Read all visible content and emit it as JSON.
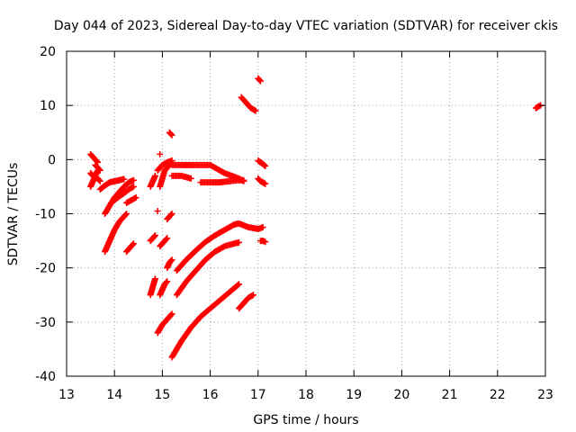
{
  "chart_data": {
    "type": "scatter",
    "title": "Day 044 of 2023, Sidereal Day-to-day VTEC variation (SDTVAR) for receiver ckis",
    "xlabel": "GPS time / hours",
    "ylabel": "SDTVAR / TECUs",
    "xlim": [
      13,
      23
    ],
    "ylim": [
      -40,
      20
    ],
    "xticks": [
      13,
      14,
      15,
      16,
      17,
      18,
      19,
      20,
      21,
      22,
      23
    ],
    "xtick_labels": [
      "13",
      "14",
      "15",
      "16",
      "17",
      "18",
      "19",
      "20",
      "21",
      "22",
      "23"
    ],
    "yticks": [
      20,
      10,
      0,
      -10,
      -20,
      -30,
      -40
    ],
    "ytick_labels": [
      "20",
      "10",
      "0",
      "-10",
      "-20",
      "-30",
      "-40"
    ],
    "grid": true,
    "marker": "+",
    "series_color": "#ff0000",
    "segments": [
      {
        "x": [
          13.5,
          13.55,
          13.6,
          13.65
        ],
        "y": [
          1.0,
          0.5,
          0.0,
          -0.5
        ]
      },
      {
        "x": [
          13.5,
          13.55,
          13.6,
          13.65
        ],
        "y": [
          -5.0,
          -4.0,
          -3.0,
          -2.0
        ]
      },
      {
        "x": [
          13.5,
          13.55,
          13.6,
          13.65,
          13.7
        ],
        "y": [
          -2.5,
          -3.0,
          -3.2,
          -3.5,
          -4.0
        ]
      },
      {
        "x": [
          13.6,
          13.65,
          13.7
        ],
        "y": [
          -1.0,
          -1.5,
          -2.0
        ]
      },
      {
        "x": [
          13.7,
          13.8,
          13.9,
          14.0,
          14.1,
          14.2
        ],
        "y": [
          -5.5,
          -4.8,
          -4.2,
          -4.0,
          -3.8,
          -3.6
        ]
      },
      {
        "x": [
          13.8,
          13.9,
          14.0,
          14.1,
          14.2,
          14.3,
          14.4
        ],
        "y": [
          -10.0,
          -8.5,
          -7.0,
          -6.0,
          -5.0,
          -4.2,
          -3.8
        ]
      },
      {
        "x": [
          14.0,
          14.1,
          14.2,
          14.3,
          14.4
        ],
        "y": [
          -7.5,
          -6.8,
          -6.2,
          -5.5,
          -5.0
        ]
      },
      {
        "x": [
          14.25,
          14.35,
          14.45
        ],
        "y": [
          -8.0,
          -7.5,
          -7.0
        ]
      },
      {
        "x": [
          13.8,
          13.9,
          14.0,
          14.1,
          14.2,
          14.25
        ],
        "y": [
          -17.0,
          -15.0,
          -13.0,
          -11.5,
          -10.5,
          -10.0
        ]
      },
      {
        "x": [
          14.25,
          14.3,
          14.35,
          14.4
        ],
        "y": [
          -17.0,
          -16.5,
          -16.0,
          -15.5
        ]
      },
      {
        "x": [
          14.75,
          14.8,
          14.85
        ],
        "y": [
          -5.0,
          -4.0,
          -3.0
        ]
      },
      {
        "x": [
          14.75,
          14.8,
          14.85
        ],
        "y": [
          -15.0,
          -14.5,
          -14.0
        ]
      },
      {
        "x": [
          14.75,
          14.8,
          14.85
        ],
        "y": [
          -25.0,
          -23.5,
          -22.0
        ]
      },
      {
        "x": [
          14.9,
          15.0,
          15.1,
          15.2
        ],
        "y": [
          -2.0,
          -1.0,
          -0.5,
          -0.2
        ]
      },
      {
        "x": [
          14.95,
          15.0,
          15.05,
          15.1,
          15.15
        ],
        "y": [
          -5.0,
          -3.5,
          -2.0,
          -1.5,
          -1.0
        ]
      },
      {
        "x": [
          14.95,
          15.0,
          15.05,
          15.1
        ],
        "y": [
          -16.0,
          -15.5,
          -15.0,
          -14.5
        ]
      },
      {
        "x": [
          14.95,
          15.0,
          15.05,
          15.1
        ],
        "y": [
          -25.0,
          -24.0,
          -23.0,
          -22.5
        ]
      },
      {
        "x": [
          14.9,
          15.0,
          15.1,
          15.2
        ],
        "y": [
          -32.0,
          -30.5,
          -29.5,
          -28.5
        ]
      },
      {
        "x": [
          15.1,
          15.15,
          15.2
        ],
        "y": [
          -11.0,
          -10.5,
          -10.0
        ]
      },
      {
        "x": [
          15.15,
          15.2
        ],
        "y": [
          5.0,
          4.5
        ]
      },
      {
        "x": [
          15.1,
          15.15,
          15.2
        ],
        "y": [
          -20.0,
          -19.0,
          -18.5
        ]
      },
      {
        "x": [
          15.2,
          15.4,
          15.6,
          15.8,
          16.0,
          16.3,
          16.6,
          16.7
        ],
        "y": [
          -1.0,
          -1.0,
          -1.0,
          -1.0,
          -1.0,
          -2.5,
          -3.5,
          -4.0
        ]
      },
      {
        "x": [
          15.2,
          15.4,
          15.6
        ],
        "y": [
          -3.0,
          -3.0,
          -3.5
        ]
      },
      {
        "x": [
          15.8,
          16.0,
          16.2,
          16.4,
          16.6,
          16.7
        ],
        "y": [
          -4.2,
          -4.2,
          -4.2,
          -4.0,
          -3.8,
          -3.8
        ]
      },
      {
        "x": [
          15.3,
          15.5,
          15.7,
          15.9,
          16.1,
          16.3,
          16.5,
          16.6,
          16.8,
          17.0,
          17.1
        ],
        "y": [
          -20.5,
          -18.5,
          -16.8,
          -15.2,
          -14.0,
          -13.0,
          -12.0,
          -11.8,
          -12.5,
          -12.8,
          -12.5
        ]
      },
      {
        "x": [
          15.3,
          15.5,
          15.7,
          15.9,
          16.1,
          16.3,
          16.5,
          16.6
        ],
        "y": [
          -25.0,
          -22.5,
          -20.5,
          -18.5,
          -17.0,
          -16.0,
          -15.5,
          -15.3
        ]
      },
      {
        "x": [
          15.2,
          15.4,
          15.6,
          15.8,
          16.0,
          16.2,
          16.4,
          16.6
        ],
        "y": [
          -36.5,
          -33.5,
          -31.0,
          -29.0,
          -27.5,
          -26.0,
          -24.5,
          -23.0
        ]
      },
      {
        "x": [
          16.6,
          16.7,
          16.8,
          16.9
        ],
        "y": [
          -27.5,
          -26.5,
          -25.5,
          -25.0
        ]
      },
      {
        "x": [
          16.65,
          16.75,
          16.85,
          16.95
        ],
        "y": [
          11.5,
          10.5,
          9.5,
          9.0
        ]
      },
      {
        "x": [
          17.0,
          17.05
        ],
        "y": [
          15.0,
          14.5
        ]
      },
      {
        "x": [
          17.0,
          17.05,
          17.1,
          17.15
        ],
        "y": [
          -0.2,
          -0.5,
          -0.8,
          -1.2
        ]
      },
      {
        "x": [
          17.0,
          17.05,
          17.1,
          17.15
        ],
        "y": [
          -3.5,
          -4.0,
          -4.2,
          -4.5
        ]
      },
      {
        "x": [
          17.05,
          17.1,
          17.15
        ],
        "y": [
          -15.0,
          -15.0,
          -15.2
        ]
      },
      {
        "x": [
          22.8,
          22.85,
          22.9
        ],
        "y": [
          9.5,
          9.8,
          10.0
        ]
      }
    ],
    "isolated_points": [
      {
        "x": 14.95,
        "y": 1.0
      },
      {
        "x": 14.9,
        "y": -9.5
      }
    ]
  }
}
